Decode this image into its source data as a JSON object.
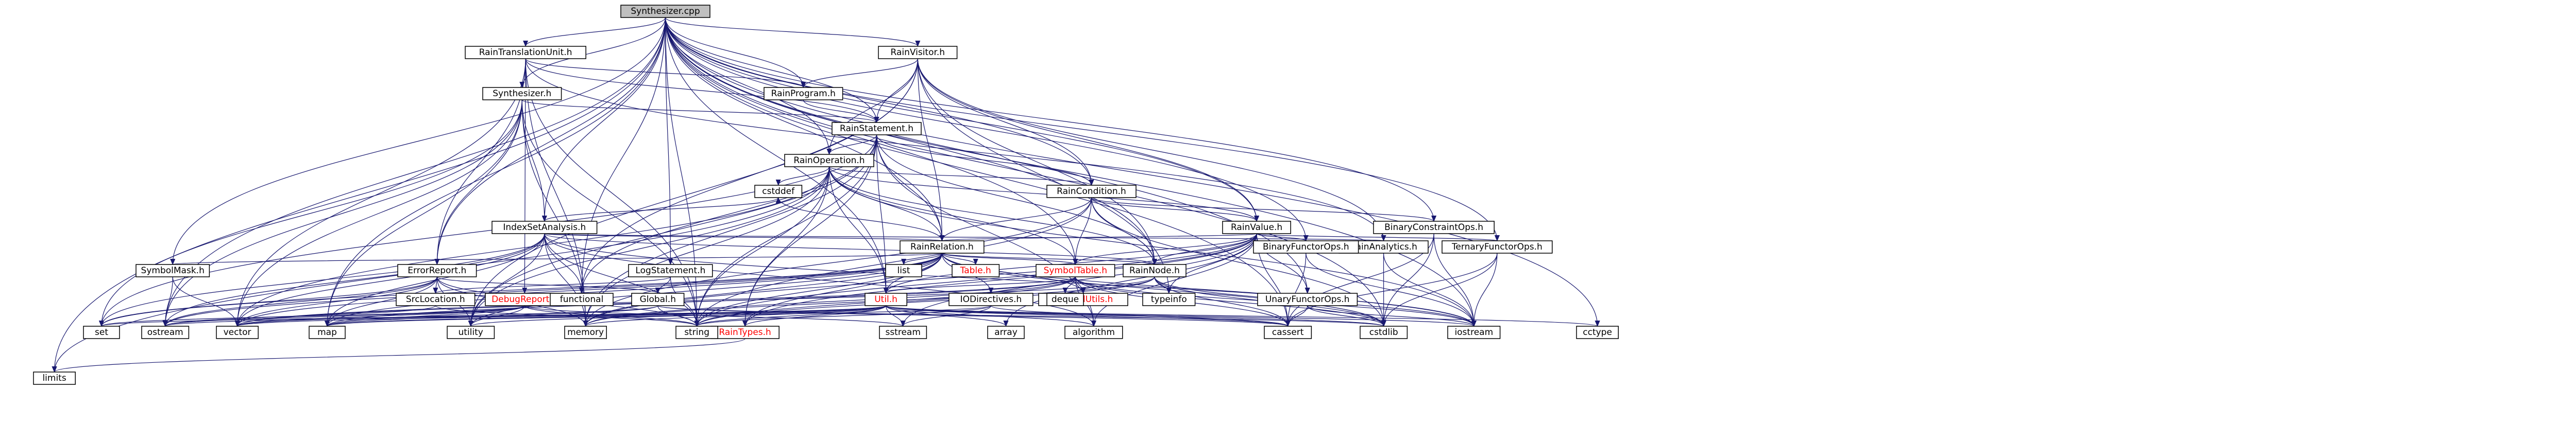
{
  "graph": {
    "root": "Synthesizer.cpp",
    "nodes": [
      {
        "id": "synth_cpp",
        "label": "Synthesizer.cpp",
        "root": true
      },
      {
        "id": "raintu",
        "label": "RainTranslationUnit.h"
      },
      {
        "id": "rainvisitor",
        "label": "RainVisitor.h"
      },
      {
        "id": "synth_h",
        "label": "Synthesizer.h"
      },
      {
        "id": "rainprogram",
        "label": "RainProgram.h"
      },
      {
        "id": "rainstatement",
        "label": "RainStatement.h"
      },
      {
        "id": "rainoperation",
        "label": "RainOperation.h"
      },
      {
        "id": "raincondition",
        "label": "RainCondition.h"
      },
      {
        "id": "indexset",
        "label": "IndexSetAnalysis.h"
      },
      {
        "id": "rainvalue",
        "label": "RainValue.h"
      },
      {
        "id": "binconstraint",
        "label": "BinaryConstraintOps.h"
      },
      {
        "id": "rainrelation",
        "label": "RainRelation.h"
      },
      {
        "id": "rainanalytics",
        "label": "RainAnalytics.h"
      },
      {
        "id": "binfunctor",
        "label": "BinaryFunctorOps.h"
      },
      {
        "id": "ternfunctor",
        "label": "TernaryFunctorOps.h"
      },
      {
        "id": "symbolmask",
        "label": "SymbolMask.h"
      },
      {
        "id": "errorreport",
        "label": "ErrorReport.h"
      },
      {
        "id": "logstatement",
        "label": "LogStatement.h"
      },
      {
        "id": "symboltable",
        "label": "SymbolTable.h",
        "red": true
      },
      {
        "id": "rainnode",
        "label": "RainNode.h"
      },
      {
        "id": "table",
        "label": "Table.h",
        "red": true
      },
      {
        "id": "srclocation",
        "label": "SrcLocation.h"
      },
      {
        "id": "debugreport",
        "label": "DebugReport.h",
        "red": true
      },
      {
        "id": "global",
        "label": "Global.h"
      },
      {
        "id": "util",
        "label": "Util.h",
        "red": true
      },
      {
        "id": "iodirectives",
        "label": "IODirectives.h"
      },
      {
        "id": "parallelutils",
        "label": "ParallelUtils.h",
        "red": true
      },
      {
        "id": "unaryfunctor",
        "label": "UnaryFunctorOps.h"
      },
      {
        "id": "raintypes",
        "label": "RainTypes.h",
        "red": true
      },
      {
        "id": "functional",
        "label": "functional"
      },
      {
        "id": "cstddef",
        "label": "cstddef"
      },
      {
        "id": "list",
        "label": "list"
      },
      {
        "id": "deque",
        "label": "deque"
      },
      {
        "id": "typeinfo",
        "label": "typeinfo"
      },
      {
        "id": "set",
        "label": "set"
      },
      {
        "id": "ostream",
        "label": "ostream"
      },
      {
        "id": "vector",
        "label": "vector"
      },
      {
        "id": "map",
        "label": "map"
      },
      {
        "id": "utility",
        "label": "utility"
      },
      {
        "id": "memory",
        "label": "memory"
      },
      {
        "id": "string",
        "label": "string"
      },
      {
        "id": "sstream",
        "label": "sstream"
      },
      {
        "id": "array",
        "label": "array"
      },
      {
        "id": "algorithm",
        "label": "algorithm"
      },
      {
        "id": "cassert",
        "label": "cassert"
      },
      {
        "id": "cstdlib",
        "label": "cstdlib"
      },
      {
        "id": "iostream",
        "label": "iostream"
      },
      {
        "id": "cctype",
        "label": "cctype"
      },
      {
        "id": "limits",
        "label": "limits"
      }
    ],
    "edges": [
      [
        "synth_cpp",
        "raintu"
      ],
      [
        "synth_cpp",
        "rainvisitor"
      ],
      [
        "synth_cpp",
        "synth_h"
      ],
      [
        "synth_cpp",
        "rainprogram"
      ],
      [
        "synth_cpp",
        "rainstatement"
      ],
      [
        "synth_cpp",
        "rainoperation"
      ],
      [
        "synth_cpp",
        "raincondition"
      ],
      [
        "synth_cpp",
        "indexset"
      ],
      [
        "synth_cpp",
        "rainvalue"
      ],
      [
        "synth_cpp",
        "binconstraint"
      ],
      [
        "synth_cpp",
        "rainrelation"
      ],
      [
        "synth_cpp",
        "binfunctor"
      ],
      [
        "synth_cpp",
        "ternfunctor"
      ],
      [
        "synth_cpp",
        "symbolmask"
      ],
      [
        "synth_cpp",
        "errorreport"
      ],
      [
        "synth_cpp",
        "logstatement"
      ],
      [
        "synth_cpp",
        "symboltable"
      ],
      [
        "synth_cpp",
        "rainnode"
      ],
      [
        "synth_cpp",
        "util"
      ],
      [
        "synth_cpp",
        "unaryfunctor"
      ],
      [
        "synth_cpp",
        "functional"
      ],
      [
        "synth_cpp",
        "ostream"
      ],
      [
        "synth_cpp",
        "map"
      ],
      [
        "synth_cpp",
        "string"
      ],
      [
        "synth_cpp",
        "cassert"
      ],
      [
        "synth_cpp",
        "cstdlib"
      ],
      [
        "synth_cpp",
        "iostream"
      ],
      [
        "synth_cpp",
        "cctype"
      ],
      [
        "synth_cpp",
        "limits"
      ],
      [
        "raintu",
        "rainprogram"
      ],
      [
        "raintu",
        "rainstatement"
      ],
      [
        "raintu",
        "debugreport"
      ],
      [
        "raintu",
        "errorreport"
      ],
      [
        "raintu",
        "rainanalytics"
      ],
      [
        "raintu",
        "memory"
      ],
      [
        "raintu",
        "string"
      ],
      [
        "raintu",
        "vector"
      ],
      [
        "rainvisitor",
        "rainprogram"
      ],
      [
        "rainvisitor",
        "rainstatement"
      ],
      [
        "rainvisitor",
        "rainoperation"
      ],
      [
        "rainvisitor",
        "raincondition"
      ],
      [
        "rainvisitor",
        "rainvalue"
      ],
      [
        "rainvisitor",
        "rainrelation"
      ],
      [
        "rainvisitor",
        "rainnode"
      ],
      [
        "rainvisitor",
        "typeinfo"
      ],
      [
        "rainvisitor",
        "functional"
      ],
      [
        "rainvisitor",
        "utility"
      ],
      [
        "rainvisitor",
        "rainanalytics"
      ],
      [
        "synth_h",
        "rainstatement"
      ],
      [
        "synth_h",
        "indexset"
      ],
      [
        "synth_h",
        "errorreport"
      ],
      [
        "synth_h",
        "set"
      ],
      [
        "synth_h",
        "ostream"
      ],
      [
        "synth_h",
        "vector"
      ],
      [
        "synth_h",
        "map"
      ],
      [
        "synth_h",
        "memory"
      ],
      [
        "synth_h",
        "string"
      ],
      [
        "rainprogram",
        "rainstatement"
      ],
      [
        "rainstatement",
        "rainoperation"
      ],
      [
        "rainstatement",
        "raincondition"
      ],
      [
        "rainstatement",
        "rainrelation"
      ],
      [
        "rainstatement",
        "rainnode"
      ],
      [
        "rainstatement",
        "util"
      ],
      [
        "rainstatement",
        "raintypes"
      ],
      [
        "rainstatement",
        "functional"
      ],
      [
        "rainstatement",
        "memory"
      ],
      [
        "rainstatement",
        "string"
      ],
      [
        "rainstatement",
        "utility"
      ],
      [
        "rainstatement",
        "set"
      ],
      [
        "rainstatement",
        "algorithm"
      ],
      [
        "rainoperation",
        "raincondition"
      ],
      [
        "rainoperation",
        "rainvalue"
      ],
      [
        "rainoperation",
        "rainrelation"
      ],
      [
        "rainoperation",
        "rainnode"
      ],
      [
        "rainoperation",
        "symboltable"
      ],
      [
        "rainoperation",
        "util"
      ],
      [
        "rainoperation",
        "raintypes"
      ],
      [
        "rainoperation",
        "cstddef"
      ],
      [
        "rainoperation",
        "memory"
      ],
      [
        "rainoperation",
        "string"
      ],
      [
        "rainoperation",
        "utility"
      ],
      [
        "rainoperation",
        "vector"
      ],
      [
        "rainoperation",
        "iostream"
      ],
      [
        "rainoperation",
        "limits"
      ],
      [
        "raincondition",
        "rainvalue"
      ],
      [
        "raincondition",
        "binconstraint"
      ],
      [
        "raincondition",
        "rainrelation"
      ],
      [
        "raincondition",
        "rainnode"
      ],
      [
        "raincondition",
        "symboltable"
      ],
      [
        "raincondition",
        "string"
      ],
      [
        "raincondition",
        "memory"
      ],
      [
        "raincondition",
        "cstdlib"
      ],
      [
        "indexset",
        "rainrelation"
      ],
      [
        "indexset",
        "rainnode"
      ],
      [
        "indexset",
        "rainanalytics"
      ],
      [
        "indexset",
        "functional"
      ],
      [
        "indexset",
        "cstddef"
      ],
      [
        "indexset",
        "set"
      ],
      [
        "indexset",
        "ostream"
      ],
      [
        "indexset",
        "vector"
      ],
      [
        "indexset",
        "map"
      ],
      [
        "indexset",
        "memory"
      ],
      [
        "indexset",
        "string"
      ],
      [
        "indexset",
        "utility"
      ],
      [
        "indexset",
        "algorithm"
      ],
      [
        "indexset",
        "iostream"
      ],
      [
        "rainvalue",
        "rainrelation"
      ],
      [
        "rainvalue",
        "rainnode"
      ],
      [
        "rainvalue",
        "binfunctor"
      ],
      [
        "rainvalue",
        "ternfunctor"
      ],
      [
        "rainvalue",
        "unaryfunctor"
      ],
      [
        "rainvalue",
        "symboltable"
      ],
      [
        "rainvalue",
        "raintypes"
      ],
      [
        "rainvalue",
        "util"
      ],
      [
        "rainvalue",
        "cassert"
      ],
      [
        "rainvalue",
        "algorithm"
      ],
      [
        "rainvalue",
        "string"
      ],
      [
        "rainvalue",
        "memory"
      ],
      [
        "rainvalue",
        "typeinfo"
      ],
      [
        "rainvalue",
        "sstream"
      ],
      [
        "rainvalue",
        "array"
      ],
      [
        "binconstraint",
        "cassert"
      ],
      [
        "binconstraint",
        "cstdlib"
      ],
      [
        "binconstraint",
        "iostream"
      ],
      [
        "rainrelation",
        "symbolmask"
      ],
      [
        "rainrelation",
        "symboltable"
      ],
      [
        "rainrelation",
        "rainnode"
      ],
      [
        "rainrelation",
        "table"
      ],
      [
        "rainrelation",
        "iodirectives"
      ],
      [
        "rainrelation",
        "parallelutils"
      ],
      [
        "rainrelation",
        "util"
      ],
      [
        "rainrelation",
        "raintypes"
      ],
      [
        "rainrelation",
        "list"
      ],
      [
        "rainrelation",
        "cstddef"
      ],
      [
        "rainrelation",
        "set"
      ],
      [
        "rainrelation",
        "ostream"
      ],
      [
        "rainrelation",
        "vector"
      ],
      [
        "rainrelation",
        "map"
      ],
      [
        "rainrelation",
        "memory"
      ],
      [
        "rainrelation",
        "string"
      ],
      [
        "rainrelation",
        "utility"
      ],
      [
        "rainrelation",
        "iostream"
      ],
      [
        "rainrelation",
        "cstdlib"
      ],
      [
        "rainanalytics",
        "cstdlib"
      ],
      [
        "rainanalytics",
        "iostream"
      ],
      [
        "binfunctor",
        "cassert"
      ],
      [
        "binfunctor",
        "iostream"
      ],
      [
        "ternfunctor",
        "cassert"
      ],
      [
        "ternfunctor",
        "iostream"
      ],
      [
        "ternfunctor",
        "cstdlib"
      ],
      [
        "symbolmask",
        "ostream"
      ],
      [
        "symbolmask",
        "vector"
      ],
      [
        "errorreport",
        "srclocation"
      ],
      [
        "errorreport",
        "global"
      ],
      [
        "errorreport",
        "set"
      ],
      [
        "errorreport",
        "ostream"
      ],
      [
        "errorreport",
        "vector"
      ],
      [
        "errorreport",
        "map"
      ],
      [
        "errorreport",
        "memory"
      ],
      [
        "errorreport",
        "string"
      ],
      [
        "errorreport",
        "utility"
      ],
      [
        "logstatement",
        "global"
      ],
      [
        "logstatement",
        "srclocation"
      ],
      [
        "logstatement",
        "string"
      ],
      [
        "symboltable",
        "util"
      ],
      [
        "symboltable",
        "parallelutils"
      ],
      [
        "symboltable",
        "deque"
      ],
      [
        "symboltable",
        "map"
      ],
      [
        "symboltable",
        "string"
      ],
      [
        "symboltable",
        "vector"
      ],
      [
        "symboltable",
        "cassert"
      ],
      [
        "symboltable",
        "cstdlib"
      ],
      [
        "symboltable",
        "iostream"
      ],
      [
        "symboltable",
        "memory"
      ],
      [
        "symboltable",
        "algorithm"
      ],
      [
        "rainnode",
        "typeinfo"
      ],
      [
        "rainnode",
        "iostream"
      ],
      [
        "rainnode",
        "string"
      ],
      [
        "rainnode",
        "memory"
      ],
      [
        "rainnode",
        "vector"
      ],
      [
        "rainnode",
        "cassert"
      ],
      [
        "rainnode",
        "cstdlib"
      ],
      [
        "srclocation",
        "string"
      ],
      [
        "srclocation",
        "ostream"
      ],
      [
        "debugreport",
        "string"
      ],
      [
        "debugreport",
        "ostream"
      ],
      [
        "debugreport",
        "vector"
      ],
      [
        "debugreport",
        "map"
      ],
      [
        "debugreport",
        "utility"
      ],
      [
        "debugreport",
        "set"
      ],
      [
        "debugreport",
        "sstream"
      ],
      [
        "global",
        "string"
      ],
      [
        "global",
        "vector"
      ],
      [
        "global",
        "map"
      ],
      [
        "global",
        "cassert"
      ],
      [
        "global",
        "cstdlib"
      ],
      [
        "util",
        "ostream"
      ],
      [
        "util",
        "vector"
      ],
      [
        "util",
        "map"
      ],
      [
        "util",
        "set"
      ],
      [
        "util",
        "utility"
      ],
      [
        "util",
        "memory"
      ],
      [
        "util",
        "string"
      ],
      [
        "util",
        "sstream"
      ],
      [
        "util",
        "array"
      ],
      [
        "util",
        "algorithm"
      ],
      [
        "util",
        "cassert"
      ],
      [
        "util",
        "cstdlib"
      ],
      [
        "util",
        "iostream"
      ],
      [
        "util",
        "cctype"
      ],
      [
        "util",
        "raintypes"
      ],
      [
        "iodirectives",
        "util"
      ],
      [
        "iodirectives",
        "map"
      ],
      [
        "iodirectives",
        "sstream"
      ],
      [
        "iodirectives",
        "string"
      ],
      [
        "iodirectives",
        "cassert"
      ],
      [
        "unaryfunctor",
        "cassert"
      ],
      [
        "unaryfunctor",
        "iostream"
      ],
      [
        "unaryfunctor",
        "cstdlib"
      ],
      [
        "raintypes",
        "limits"
      ]
    ]
  },
  "colors": {
    "node_fill": "#ffffff",
    "root_fill": "#bfbfbf",
    "edge": "#191970",
    "text": "#000000",
    "red_text": "#ff0000"
  }
}
